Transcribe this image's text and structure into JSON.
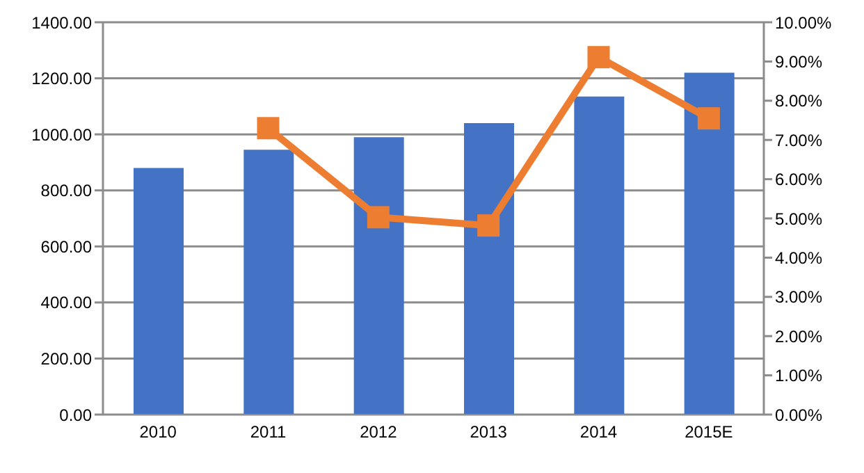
{
  "chart_data": {
    "type": "bar",
    "categories": [
      "2010",
      "2011",
      "2012",
      "2013",
      "2014",
      "2015E"
    ],
    "series": [
      {
        "color": "#4472c4",
        "values": [
          880,
          945,
          990,
          1040,
          1135,
          1220
        ]
      },
      {
        "type": "line",
        "axis": "y2",
        "color": "#ed7d31",
        "marker": "square",
        "values": [
          null,
          7.3,
          5.03,
          4.82,
          9.11,
          7.55
        ]
      }
    ],
    "ylim": [
      0,
      1400
    ],
    "yticks": [
      {
        "value": 0,
        "label": "0.00"
      },
      {
        "value": 200,
        "label": "200.00"
      },
      {
        "value": 400,
        "label": "400.00"
      },
      {
        "value": 600,
        "label": "600.00"
      },
      {
        "value": 800,
        "label": "800.00"
      },
      {
        "value": 1000,
        "label": "1000.00"
      },
      {
        "value": 1200,
        "label": "1200.00"
      },
      {
        "value": 1400,
        "label": "1400.00"
      }
    ],
    "y2lim": [
      0,
      10
    ],
    "y2ticks": [
      {
        "value": 0,
        "label": "0.00%"
      },
      {
        "value": 1,
        "label": "1.00%"
      },
      {
        "value": 2,
        "label": "2.00%"
      },
      {
        "value": 3,
        "label": "3.00%"
      },
      {
        "value": 4,
        "label": "4.00%"
      },
      {
        "value": 5,
        "label": "5.00%"
      },
      {
        "value": 6,
        "label": "6.00%"
      },
      {
        "value": 7,
        "label": "7.00%"
      },
      {
        "value": 8,
        "label": "8.00%"
      },
      {
        "value": 9,
        "label": "9.00%"
      },
      {
        "value": 10,
        "label": "10.00%"
      }
    ],
    "grid": "y"
  }
}
